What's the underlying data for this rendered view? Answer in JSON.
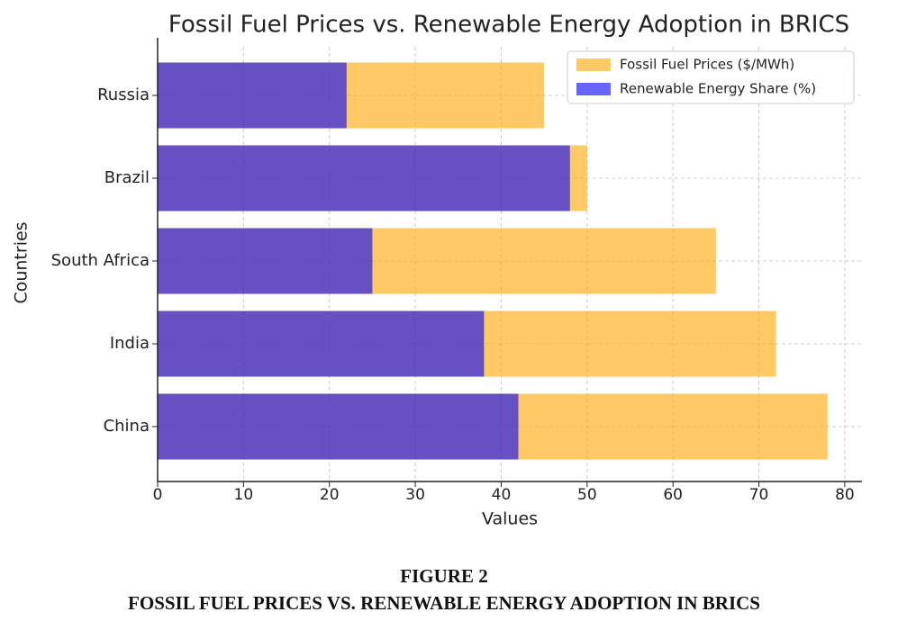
{
  "chart_data": {
    "type": "bar",
    "orientation": "horizontal",
    "overlap": true,
    "title": "Fossil Fuel Prices vs. Renewable Energy Adoption in BRICS",
    "xlabel": "Values",
    "ylabel": "Countries",
    "categories": [
      "China",
      "India",
      "South Africa",
      "Brazil",
      "Russia"
    ],
    "series": [
      {
        "name": "Fossil Fuel Prices ($/MWh)",
        "color": "orange",
        "values": [
          78,
          72,
          65,
          50,
          45
        ]
      },
      {
        "name": "Renewable Energy Share (%)",
        "color": "blue",
        "values": [
          42,
          38,
          25,
          48,
          22
        ]
      }
    ],
    "alpha": 0.6,
    "xlim": [
      0,
      82
    ],
    "xticks": [
      0,
      10,
      20,
      30,
      40,
      50,
      60,
      70,
      80
    ],
    "grid": true,
    "legend": "upper right"
  },
  "caption": {
    "label": "FIGURE 2",
    "text": "FOSSIL FUEL PRICES VS. RENEWABLE ENERGY ADOPTION IN BRICS"
  }
}
